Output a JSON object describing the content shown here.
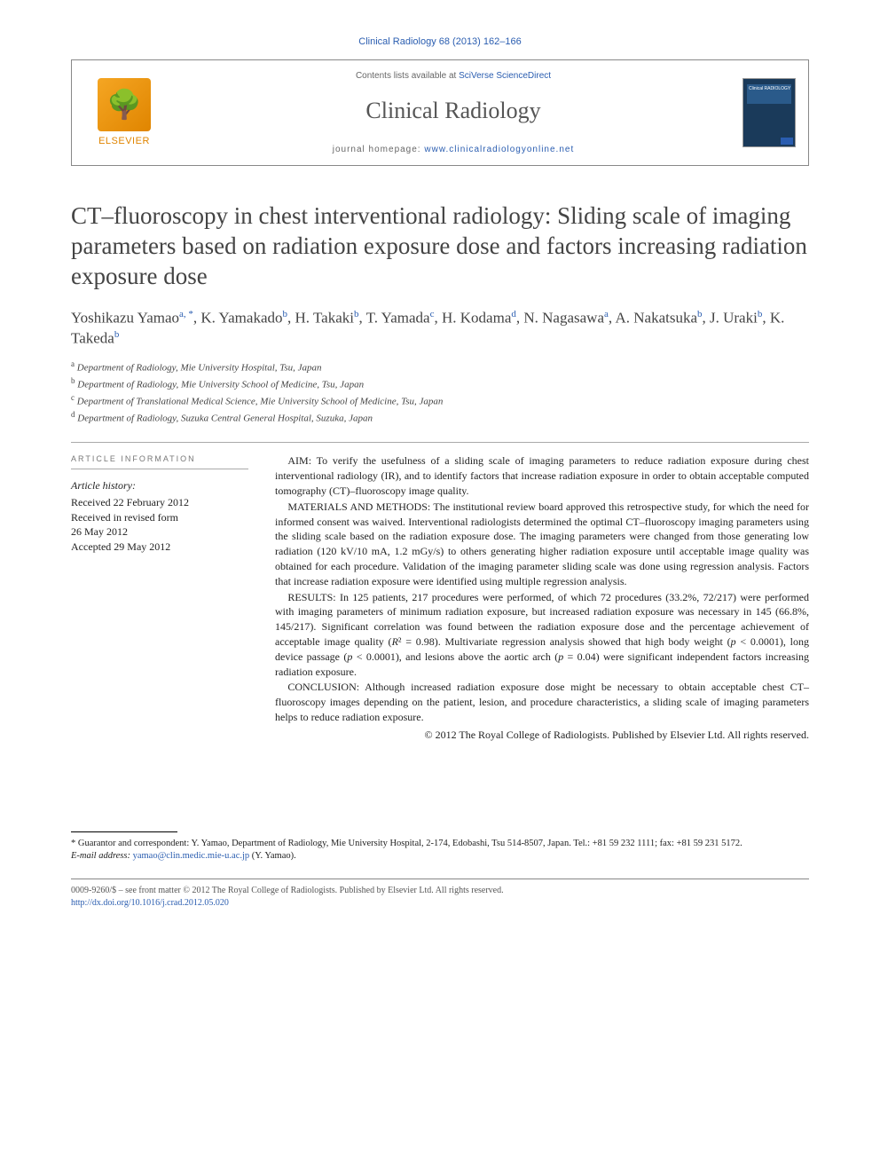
{
  "citation": "Clinical Radiology 68 (2013) 162–166",
  "header": {
    "contents_prefix": "Contents lists available at ",
    "contents_link": "SciVerse ScienceDirect",
    "journal_name": "Clinical Radiology",
    "homepage_prefix": "journal homepage: ",
    "homepage_url": "www.clinicalradiologyonline.net",
    "publisher": "ELSEVIER",
    "cover_label": "Clinical RADIOLOGY"
  },
  "title": "CT–fluoroscopy in chest interventional radiology: Sliding scale of imaging parameters based on radiation exposure dose and factors increasing radiation exposure dose",
  "authors_html": "Yoshikazu Yamao|a,*|, K. Yamakado|b|, H. Takaki|b|, T. Yamada|c|, H. Kodama|d|, N. Nagasawa|a|, A. Nakatsuka|b|, J. Uraki|b|, K. Takeda|b|",
  "affiliations": [
    {
      "sup": "a",
      "text": "Department of Radiology, Mie University Hospital, Tsu, Japan"
    },
    {
      "sup": "b",
      "text": "Department of Radiology, Mie University School of Medicine, Tsu, Japan"
    },
    {
      "sup": "c",
      "text": "Department of Translational Medical Science, Mie University School of Medicine, Tsu, Japan"
    },
    {
      "sup": "d",
      "text": "Department of Radiology, Suzuka Central General Hospital, Suzuka, Japan"
    }
  ],
  "article_info": {
    "heading": "ARTICLE INFORMATION",
    "history_label": "Article history:",
    "lines": [
      "Received 22 February 2012",
      "Received in revised form",
      "26 May 2012",
      "Accepted 29 May 2012"
    ]
  },
  "abstract": {
    "aim": "AIM: To verify the usefulness of a sliding scale of imaging parameters to reduce radiation exposure during chest interventional radiology (IR), and to identify factors that increase radiation exposure in order to obtain acceptable computed tomography (CT)–fluoroscopy image quality.",
    "methods": "MATERIALS AND METHODS: The institutional review board approved this retrospective study, for which the need for informed consent was waived. Interventional radiologists determined the optimal CT–fluoroscopy imaging parameters using the sliding scale based on the radiation exposure dose. The imaging parameters were changed from those generating low radiation (120 kV/10 mA, 1.2 mGy/s) to others generating higher radiation exposure until acceptable image quality was obtained for each procedure. Validation of the imaging parameter sliding scale was done using regression analysis. Factors that increase radiation exposure were identified using multiple regression analysis.",
    "results": "RESULTS: In 125 patients, 217 procedures were performed, of which 72 procedures (33.2%, 72/217) were performed with imaging parameters of minimum radiation exposure, but increased radiation exposure was necessary in 145 (66.8%, 145/217). Significant correlation was found between the radiation exposure dose and the percentage achievement of acceptable image quality (R² = 0.98). Multivariate regression analysis showed that high body weight (p < 0.0001), long device passage (p < 0.0001), and lesions above the aortic arch (p = 0.04) were significant independent factors increasing radiation exposure.",
    "conclusion": "CONCLUSION: Although increased radiation exposure dose might be necessary to obtain acceptable chest CT–fluoroscopy images depending on the patient, lesion, and procedure characteristics, a sliding scale of imaging parameters helps to reduce radiation exposure.",
    "copyright": "© 2012 The Royal College of Radiologists. Published by Elsevier Ltd. All rights reserved."
  },
  "footnote": {
    "guarantor": "* Guarantor and correspondent: Y. Yamao, Department of Radiology, Mie University Hospital, 2-174, Edobashi, Tsu 514-8507, Japan. Tel.: +81 59 232 1111; fax: +81 59 231 5172.",
    "email_label": "E-mail address: ",
    "email": "yamao@clin.medic.mie-u.ac.jp",
    "email_suffix": " (Y. Yamao)."
  },
  "bottom": {
    "issn": "0009-9260/$ – see front matter © 2012 The Royal College of Radiologists. Published by Elsevier Ltd. All rights reserved.",
    "doi": "http://dx.doi.org/10.1016/j.crad.2012.05.020"
  },
  "colors": {
    "link": "#2a5db0",
    "text": "#222",
    "muted": "#666",
    "elsevier": "#e08500"
  }
}
